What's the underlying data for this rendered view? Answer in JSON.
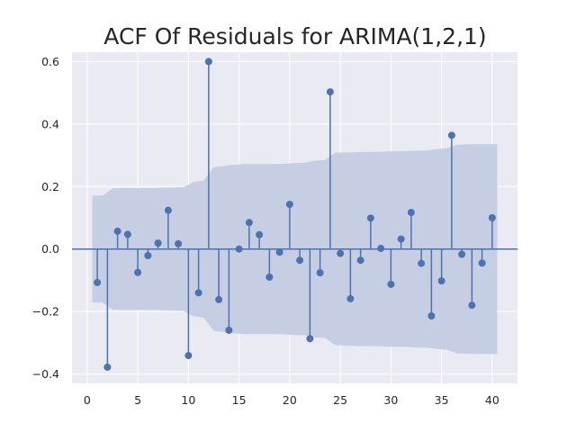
{
  "chart_data": {
    "type": "stem",
    "title": "ACF Of Residuals for ARIMA(1,2,1)",
    "xlabel": "",
    "ylabel": "",
    "xlim": [
      -1.5,
      42.5
    ],
    "ylim": [
      -0.43,
      0.63
    ],
    "xticks": [
      0,
      5,
      10,
      15,
      20,
      25,
      30,
      35,
      40
    ],
    "yticks": [
      -0.4,
      -0.2,
      0.0,
      0.2,
      0.4,
      0.6
    ],
    "ytick_labels": [
      "−0.4",
      "−0.2",
      "0.0",
      "0.2",
      "0.4",
      "0.6"
    ],
    "grid": true,
    "lags": [
      1,
      2,
      3,
      4,
      5,
      6,
      7,
      8,
      9,
      10,
      11,
      12,
      13,
      14,
      15,
      16,
      17,
      18,
      19,
      20,
      21,
      22,
      23,
      24,
      25,
      26,
      27,
      28,
      29,
      30,
      31,
      32,
      33,
      34,
      35,
      36,
      37,
      38,
      39,
      40
    ],
    "acf": [
      -0.107,
      -0.378,
      0.057,
      0.047,
      -0.075,
      -0.021,
      0.019,
      0.124,
      0.017,
      -0.341,
      -0.14,
      0.6,
      -0.162,
      -0.26,
      0.0,
      0.085,
      0.046,
      -0.09,
      -0.01,
      0.143,
      -0.036,
      -0.287,
      -0.076,
      0.503,
      -0.014,
      -0.159,
      -0.036,
      0.099,
      0.002,
      -0.113,
      0.032,
      0.117,
      -0.046,
      -0.214,
      -0.102,
      0.364,
      -0.017,
      -0.18,
      -0.045,
      0.1
    ],
    "confint_x": [
      0.5,
      1.5,
      2.5,
      3.5,
      4.5,
      5.5,
      6.5,
      7.5,
      8.5,
      9.5,
      10.5,
      11.5,
      12.5,
      13.5,
      14.5,
      15.5,
      16.5,
      17.5,
      18.5,
      19.5,
      20.5,
      21.5,
      22.5,
      23.5,
      24.5,
      25.5,
      26.5,
      27.5,
      28.5,
      29.5,
      30.5,
      31.5,
      32.5,
      33.5,
      34.5,
      35.5,
      36.5,
      37.5,
      38.5,
      39.5,
      40.5
    ],
    "confint_halfwidth": [
      0.171,
      0.171,
      0.194,
      0.195,
      0.195,
      0.195,
      0.195,
      0.196,
      0.197,
      0.198,
      0.215,
      0.22,
      0.262,
      0.266,
      0.27,
      0.272,
      0.272,
      0.272,
      0.272,
      0.273,
      0.275,
      0.276,
      0.283,
      0.285,
      0.308,
      0.309,
      0.31,
      0.311,
      0.311,
      0.312,
      0.313,
      0.313,
      0.315,
      0.315,
      0.32,
      0.322,
      0.334,
      0.335,
      0.336,
      0.336,
      0.336
    ],
    "colors": {
      "stem": "#4c72b0",
      "confint": "#c4cce3",
      "plot_bg": "#eaeaf2",
      "grid": "#ffffff",
      "text": "#262626"
    }
  }
}
